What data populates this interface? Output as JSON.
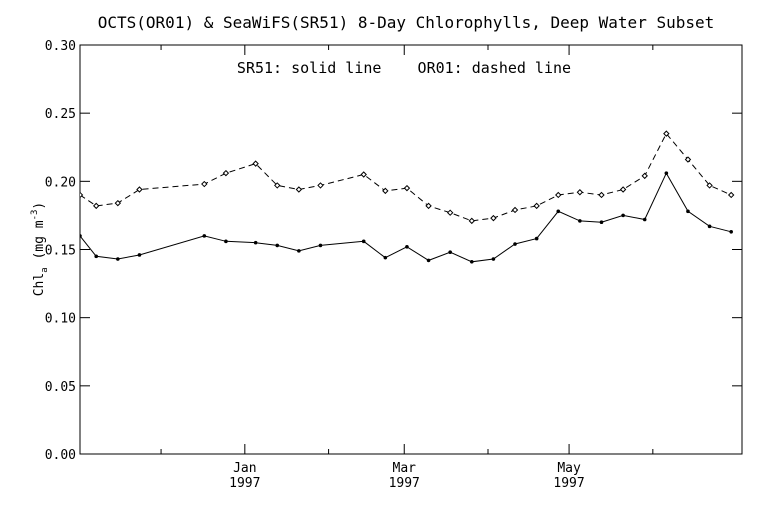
{
  "chart_data": {
    "type": "line",
    "title": "OCTS(OR01) & SeaWiFS(SR51) 8-Day Chlorophylls, Deep Water Subset",
    "annotation": "SR51: solid line    OR01: dashed line",
    "ylabel": "Chl",
    "ylabel_sub": "a",
    "ylabel_units_open": " (mg m",
    "ylabel_units_sup": "-3",
    "ylabel_units_close": ")",
    "xlabel": "",
    "ylim": [
      0.0,
      0.3
    ],
    "yticks": [
      "0.00",
      "0.05",
      "0.10",
      "0.15",
      "0.20",
      "0.25",
      "0.30"
    ],
    "ytick_values": [
      0.0,
      0.05,
      0.1,
      0.15,
      0.2,
      0.25,
      0.3
    ],
    "x_axis": {
      "type": "date",
      "start": "1996-11-01",
      "end": "1997-07-04"
    },
    "xticks": [
      {
        "date": "1997-01-01",
        "month": "Jan",
        "year": "1997"
      },
      {
        "date": "1997-03-01",
        "month": "Mar",
        "year": "1997"
      },
      {
        "date": "1997-05-01",
        "month": "May",
        "year": "1997"
      }
    ],
    "minor_ticks": [
      "1996-12-01",
      "1997-02-01",
      "1997-04-01",
      "1997-06-01"
    ],
    "grid": false,
    "legend": "none",
    "series": [
      {
        "name": "SR51",
        "line_style": "solid",
        "x": [
          "1996-11-01",
          "1996-11-07",
          "1996-11-15",
          "1996-11-23",
          "1996-12-17",
          "1996-12-25",
          "1997-01-05",
          "1997-01-13",
          "1997-01-21",
          "1997-01-29",
          "1997-02-14",
          "1997-02-22",
          "1997-03-02",
          "1997-03-10",
          "1997-03-18",
          "1997-03-26",
          "1997-04-03",
          "1997-04-11",
          "1997-04-19",
          "1997-04-27",
          "1997-05-05",
          "1997-05-13",
          "1997-05-21",
          "1997-05-29",
          "1997-06-06",
          "1997-06-14",
          "1997-06-22",
          "1997-06-30"
        ],
        "y": [
          0.16,
          0.145,
          0.143,
          0.146,
          0.16,
          0.156,
          0.155,
          0.153,
          0.149,
          0.153,
          0.156,
          0.144,
          0.152,
          0.142,
          0.148,
          0.141,
          0.143,
          0.154,
          0.158,
          0.178,
          0.171,
          0.17,
          0.175,
          0.172,
          0.206,
          0.178,
          0.167,
          0.163
        ]
      },
      {
        "name": "OR01",
        "line_style": "dashed",
        "x": [
          "1996-11-01",
          "1996-11-07",
          "1996-11-15",
          "1996-11-23",
          "1996-12-17",
          "1996-12-25",
          "1997-01-05",
          "1997-01-13",
          "1997-01-21",
          "1997-01-29",
          "1997-02-14",
          "1997-02-22",
          "1997-03-02",
          "1997-03-10",
          "1997-03-18",
          "1997-03-26",
          "1997-04-03",
          "1997-04-11",
          "1997-04-19",
          "1997-04-27",
          "1997-05-05",
          "1997-05-13",
          "1997-05-21",
          "1997-05-29",
          "1997-06-06",
          "1997-06-14",
          "1997-06-22",
          "1997-06-30"
        ],
        "y": [
          0.19,
          0.182,
          0.184,
          0.194,
          0.198,
          0.206,
          0.213,
          0.197,
          0.194,
          0.197,
          0.205,
          0.193,
          0.195,
          0.182,
          0.177,
          0.171,
          0.173,
          0.179,
          0.182,
          0.19,
          0.192,
          0.19,
          0.194,
          0.204,
          0.235,
          0.216,
          0.197,
          0.19
        ]
      }
    ]
  }
}
